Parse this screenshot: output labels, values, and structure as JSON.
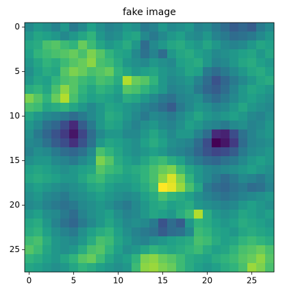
{
  "chart_data": {
    "type": "heatmap",
    "title": "fake image",
    "colormap": "viridis",
    "xlim": [
      -0.5,
      27.5
    ],
    "ylim": [
      27.5,
      -0.5
    ],
    "xticks": [
      0,
      5,
      10,
      15,
      20,
      25
    ],
    "yticks": [
      0,
      5,
      10,
      15,
      20,
      25
    ],
    "values": [
      [
        0.5,
        0.55,
        0.52,
        0.48,
        0.55,
        0.45,
        0.5,
        0.58,
        0.52,
        0.48,
        0.5,
        0.55,
        0.52,
        0.45,
        0.48,
        0.55,
        0.5,
        0.52,
        0.55,
        0.48,
        0.5,
        0.45,
        0.4,
        0.35,
        0.38,
        0.35,
        0.45,
        0.5
      ],
      [
        0.55,
        0.6,
        0.58,
        0.55,
        0.5,
        0.55,
        0.6,
        0.65,
        0.55,
        0.5,
        0.52,
        0.58,
        0.6,
        0.5,
        0.45,
        0.5,
        0.55,
        0.58,
        0.52,
        0.5,
        0.55,
        0.48,
        0.45,
        0.4,
        0.42,
        0.45,
        0.5,
        0.55
      ],
      [
        0.6,
        0.62,
        0.7,
        0.72,
        0.68,
        0.65,
        0.75,
        0.68,
        0.6,
        0.55,
        0.58,
        0.62,
        0.55,
        0.4,
        0.5,
        0.55,
        0.6,
        0.62,
        0.58,
        0.55,
        0.6,
        0.55,
        0.5,
        0.48,
        0.5,
        0.55,
        0.6,
        0.58
      ],
      [
        0.58,
        0.65,
        0.68,
        0.7,
        0.72,
        0.75,
        0.7,
        0.78,
        0.72,
        0.65,
        0.6,
        0.58,
        0.5,
        0.42,
        0.48,
        0.4,
        0.55,
        0.6,
        0.62,
        0.58,
        0.55,
        0.5,
        0.52,
        0.55,
        0.58,
        0.6,
        0.55,
        0.6
      ],
      [
        0.55,
        0.6,
        0.65,
        0.62,
        0.68,
        0.72,
        0.75,
        0.8,
        0.7,
        0.68,
        0.62,
        0.55,
        0.52,
        0.5,
        0.55,
        0.52,
        0.5,
        0.58,
        0.6,
        0.62,
        0.55,
        0.48,
        0.5,
        0.55,
        0.6,
        0.62,
        0.58,
        0.55
      ],
      [
        0.52,
        0.58,
        0.62,
        0.6,
        0.72,
        0.78,
        0.75,
        0.7,
        0.72,
        0.75,
        0.65,
        0.6,
        0.55,
        0.58,
        0.6,
        0.55,
        0.52,
        0.55,
        0.6,
        0.58,
        0.45,
        0.4,
        0.45,
        0.5,
        0.55,
        0.6,
        0.62,
        0.58
      ],
      [
        0.55,
        0.6,
        0.58,
        0.65,
        0.7,
        0.72,
        0.68,
        0.65,
        0.7,
        0.68,
        0.62,
        0.85,
        0.75,
        0.72,
        0.65,
        0.55,
        0.5,
        0.52,
        0.55,
        0.48,
        0.4,
        0.32,
        0.38,
        0.45,
        0.5,
        0.55,
        0.6,
        0.62
      ],
      [
        0.62,
        0.65,
        0.6,
        0.7,
        0.8,
        0.72,
        0.65,
        0.6,
        0.65,
        0.62,
        0.58,
        0.72,
        0.7,
        0.65,
        0.6,
        0.55,
        0.48,
        0.5,
        0.52,
        0.45,
        0.38,
        0.35,
        0.4,
        0.48,
        0.55,
        0.6,
        0.58,
        0.55
      ],
      [
        0.78,
        0.72,
        0.65,
        0.75,
        0.85,
        0.7,
        0.62,
        0.58,
        0.6,
        0.58,
        0.55,
        0.62,
        0.6,
        0.55,
        0.5,
        0.45,
        0.42,
        0.48,
        0.5,
        0.52,
        0.45,
        0.4,
        0.45,
        0.5,
        0.55,
        0.58,
        0.55,
        0.52
      ],
      [
        0.7,
        0.68,
        0.6,
        0.62,
        0.65,
        0.6,
        0.55,
        0.5,
        0.55,
        0.6,
        0.58,
        0.55,
        0.52,
        0.48,
        0.45,
        0.4,
        0.35,
        0.45,
        0.5,
        0.55,
        0.52,
        0.48,
        0.5,
        0.55,
        0.6,
        0.55,
        0.52,
        0.5
      ],
      [
        0.6,
        0.55,
        0.5,
        0.48,
        0.45,
        0.4,
        0.45,
        0.5,
        0.55,
        0.62,
        0.6,
        0.55,
        0.5,
        0.45,
        0.5,
        0.48,
        0.45,
        0.5,
        0.55,
        0.6,
        0.55,
        0.52,
        0.55,
        0.58,
        0.55,
        0.5,
        0.48,
        0.52
      ],
      [
        0.55,
        0.5,
        0.42,
        0.38,
        0.3,
        0.2,
        0.35,
        0.45,
        0.55,
        0.6,
        0.58,
        0.52,
        0.48,
        0.52,
        0.55,
        0.5,
        0.48,
        0.52,
        0.58,
        0.55,
        0.5,
        0.48,
        0.45,
        0.5,
        0.52,
        0.48,
        0.5,
        0.55
      ],
      [
        0.52,
        0.45,
        0.38,
        0.32,
        0.25,
        0.15,
        0.28,
        0.4,
        0.5,
        0.55,
        0.55,
        0.5,
        0.5,
        0.55,
        0.6,
        0.55,
        0.5,
        0.55,
        0.55,
        0.48,
        0.4,
        0.2,
        0.18,
        0.3,
        0.42,
        0.48,
        0.52,
        0.55
      ],
      [
        0.5,
        0.48,
        0.42,
        0.35,
        0.3,
        0.22,
        0.32,
        0.42,
        0.55,
        0.6,
        0.58,
        0.55,
        0.52,
        0.58,
        0.62,
        0.58,
        0.52,
        0.5,
        0.48,
        0.4,
        0.3,
        0.1,
        0.15,
        0.25,
        0.4,
        0.48,
        0.5,
        0.52
      ],
      [
        0.48,
        0.52,
        0.5,
        0.45,
        0.4,
        0.38,
        0.42,
        0.5,
        0.7,
        0.65,
        0.6,
        0.55,
        0.52,
        0.55,
        0.58,
        0.55,
        0.5,
        0.48,
        0.45,
        0.38,
        0.32,
        0.28,
        0.3,
        0.35,
        0.45,
        0.5,
        0.52,
        0.55
      ],
      [
        0.52,
        0.55,
        0.55,
        0.5,
        0.48,
        0.45,
        0.5,
        0.55,
        0.78,
        0.72,
        0.62,
        0.58,
        0.55,
        0.6,
        0.65,
        0.68,
        0.62,
        0.58,
        0.5,
        0.45,
        0.4,
        0.38,
        0.42,
        0.45,
        0.5,
        0.55,
        0.58,
        0.55
      ],
      [
        0.58,
        0.6,
        0.58,
        0.55,
        0.52,
        0.55,
        0.58,
        0.6,
        0.72,
        0.68,
        0.65,
        0.6,
        0.62,
        0.65,
        0.7,
        0.75,
        0.78,
        0.68,
        0.6,
        0.55,
        0.5,
        0.48,
        0.5,
        0.52,
        0.55,
        0.58,
        0.55,
        0.52
      ],
      [
        0.6,
        0.62,
        0.6,
        0.58,
        0.55,
        0.55,
        0.6,
        0.65,
        0.68,
        0.62,
        0.6,
        0.58,
        0.6,
        0.65,
        0.7,
        0.8,
        0.9,
        0.78,
        0.65,
        0.55,
        0.5,
        0.45,
        0.4,
        0.45,
        0.5,
        0.48,
        0.45,
        0.5
      ],
      [
        0.55,
        0.58,
        0.55,
        0.52,
        0.5,
        0.52,
        0.55,
        0.6,
        0.62,
        0.58,
        0.55,
        0.55,
        0.58,
        0.62,
        0.68,
        0.95,
        0.92,
        0.82,
        0.7,
        0.6,
        0.45,
        0.4,
        0.38,
        0.42,
        0.45,
        0.4,
        0.42,
        0.48
      ],
      [
        0.52,
        0.55,
        0.5,
        0.48,
        0.45,
        0.5,
        0.52,
        0.55,
        0.58,
        0.55,
        0.52,
        0.5,
        0.52,
        0.58,
        0.62,
        0.7,
        0.65,
        0.62,
        0.58,
        0.52,
        0.48,
        0.45,
        0.42,
        0.45,
        0.48,
        0.5,
        0.52,
        0.55
      ],
      [
        0.5,
        0.52,
        0.48,
        0.45,
        0.42,
        0.45,
        0.5,
        0.52,
        0.55,
        0.52,
        0.48,
        0.45,
        0.5,
        0.55,
        0.6,
        0.62,
        0.58,
        0.6,
        0.62,
        0.55,
        0.52,
        0.5,
        0.48,
        0.5,
        0.55,
        0.58,
        0.55,
        0.52
      ],
      [
        0.55,
        0.58,
        0.52,
        0.5,
        0.45,
        0.4,
        0.48,
        0.52,
        0.55,
        0.58,
        0.52,
        0.48,
        0.5,
        0.55,
        0.6,
        0.58,
        0.55,
        0.62,
        0.68,
        0.85,
        0.62,
        0.55,
        0.52,
        0.55,
        0.6,
        0.58,
        0.55,
        0.58
      ],
      [
        0.6,
        0.62,
        0.55,
        0.48,
        0.42,
        0.38,
        0.45,
        0.5,
        0.55,
        0.6,
        0.55,
        0.5,
        0.52,
        0.5,
        0.45,
        0.32,
        0.4,
        0.35,
        0.55,
        0.65,
        0.62,
        0.58,
        0.55,
        0.58,
        0.62,
        0.6,
        0.58,
        0.55
      ],
      [
        0.62,
        0.65,
        0.58,
        0.52,
        0.48,
        0.45,
        0.52,
        0.58,
        0.62,
        0.65,
        0.58,
        0.52,
        0.48,
        0.45,
        0.42,
        0.35,
        0.4,
        0.42,
        0.5,
        0.68,
        0.65,
        0.6,
        0.58,
        0.55,
        0.6,
        0.62,
        0.6,
        0.58
      ],
      [
        0.68,
        0.7,
        0.62,
        0.55,
        0.52,
        0.5,
        0.55,
        0.62,
        0.7,
        0.68,
        0.6,
        0.55,
        0.5,
        0.48,
        0.52,
        0.55,
        0.58,
        0.6,
        0.62,
        0.7,
        0.68,
        0.62,
        0.58,
        0.6,
        0.65,
        0.68,
        0.65,
        0.62
      ],
      [
        0.72,
        0.68,
        0.6,
        0.55,
        0.52,
        0.55,
        0.62,
        0.7,
        0.72,
        0.65,
        0.58,
        0.52,
        0.55,
        0.6,
        0.65,
        0.62,
        0.6,
        0.62,
        0.65,
        0.68,
        0.62,
        0.58,
        0.6,
        0.65,
        0.7,
        0.72,
        0.75,
        0.7
      ],
      [
        0.65,
        0.62,
        0.58,
        0.55,
        0.6,
        0.65,
        0.72,
        0.75,
        0.68,
        0.6,
        0.55,
        0.58,
        0.65,
        0.78,
        0.8,
        0.75,
        0.72,
        0.68,
        0.62,
        0.6,
        0.58,
        0.62,
        0.65,
        0.68,
        0.72,
        0.75,
        0.8,
        0.72
      ],
      [
        0.6,
        0.58,
        0.55,
        0.52,
        0.55,
        0.6,
        0.65,
        0.62,
        0.58,
        0.55,
        0.52,
        0.55,
        0.68,
        0.8,
        0.82,
        0.78,
        0.75,
        0.68,
        0.62,
        0.58,
        0.55,
        0.58,
        0.62,
        0.65,
        0.7,
        0.82,
        0.78,
        0.7
      ]
    ]
  }
}
